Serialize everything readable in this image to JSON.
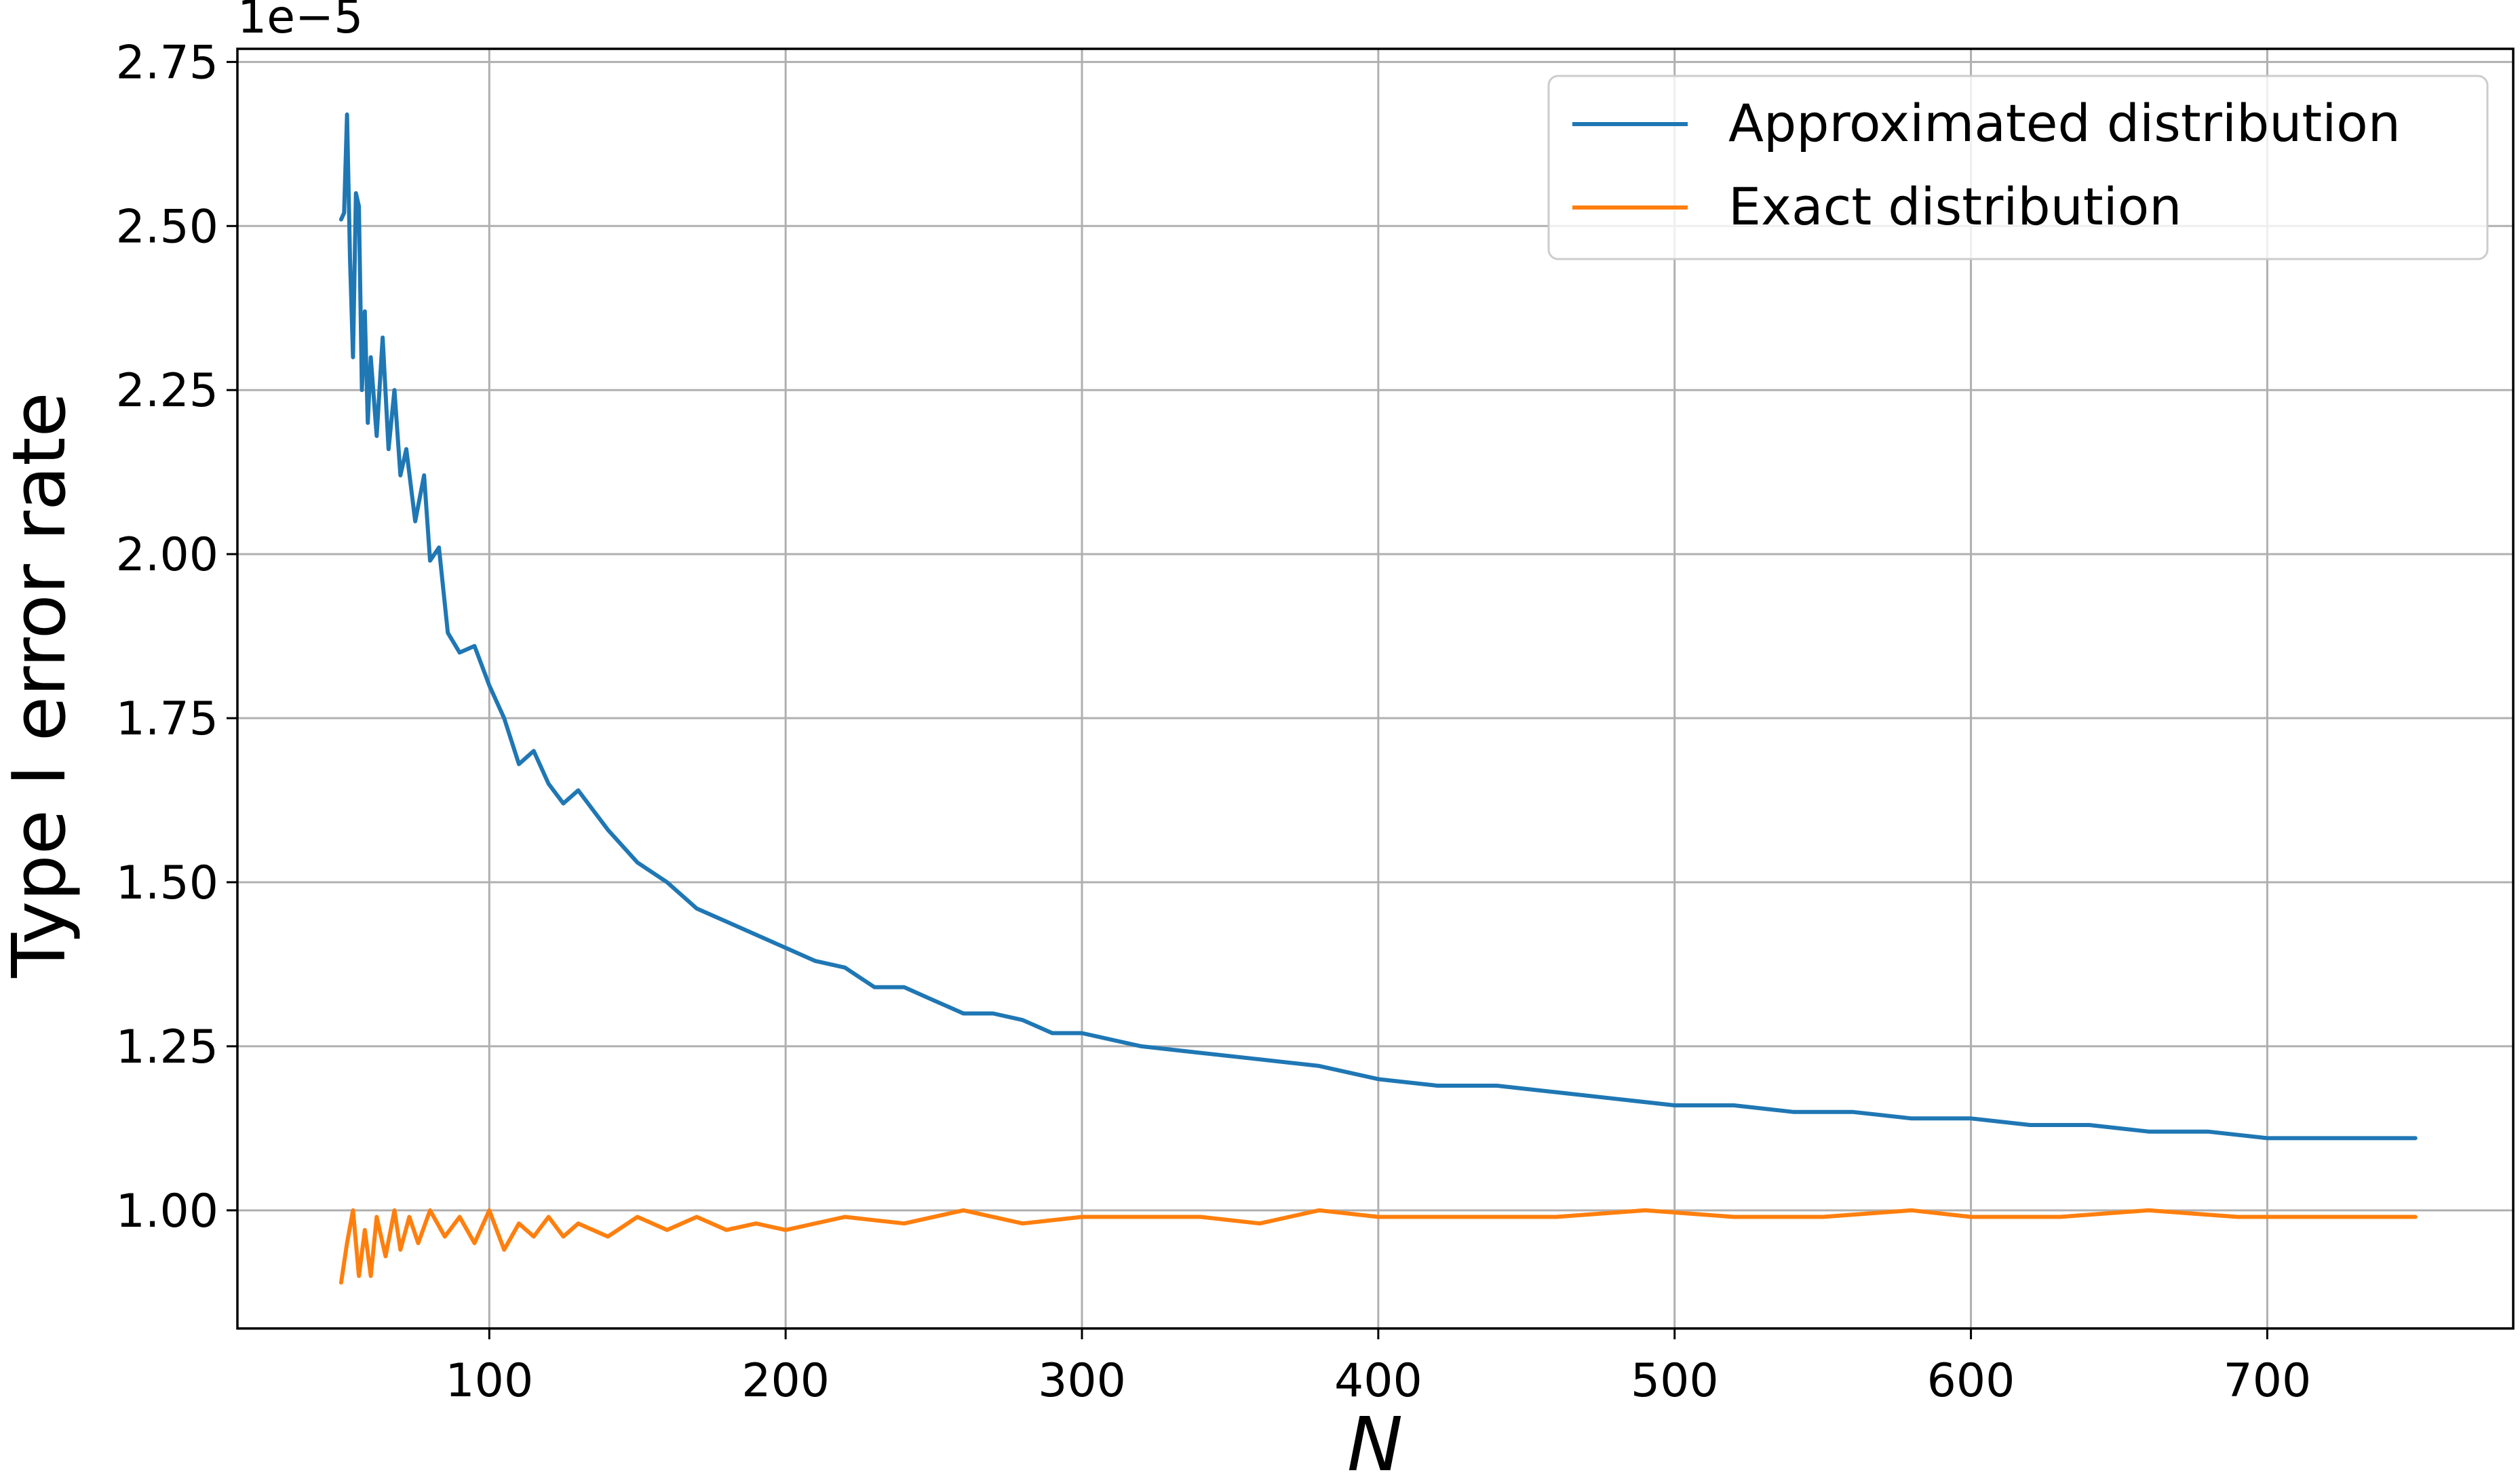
{
  "chart_data": {
    "type": "line",
    "xlabel": "N",
    "ylabel": "Type I error rate",
    "y_offset_label": "1e−5",
    "xlim": [
      15,
      783
    ],
    "ylim": [
      0.82,
      2.77
    ],
    "y_scale_note": "values shown in units of 1e-5",
    "x_ticks": [
      100,
      200,
      300,
      400,
      500,
      600,
      700
    ],
    "x_tick_labels": [
      "100",
      "200",
      "300",
      "400",
      "500",
      "600",
      "700"
    ],
    "y_ticks": [
      1.0,
      1.25,
      1.5,
      1.75,
      2.0,
      2.25,
      2.5,
      2.75
    ],
    "y_tick_labels": [
      "1.00",
      "1.25",
      "1.50",
      "1.75",
      "2.00",
      "2.25",
      "2.50",
      "2.75"
    ],
    "grid": true,
    "legend_position": "top-right",
    "series": [
      {
        "name": "Approximated distribution",
        "color": "#1f77b4",
        "x": [
          50,
          51,
          52,
          53,
          54,
          55,
          56,
          57,
          58,
          59,
          60,
          62,
          64,
          66,
          68,
          70,
          72,
          75,
          78,
          80,
          83,
          86,
          90,
          95,
          100,
          105,
          110,
          115,
          120,
          125,
          130,
          140,
          150,
          160,
          170,
          180,
          190,
          200,
          210,
          220,
          230,
          240,
          250,
          260,
          270,
          280,
          290,
          300,
          320,
          340,
          360,
          380,
          400,
          420,
          440,
          460,
          480,
          500,
          520,
          540,
          560,
          580,
          600,
          620,
          640,
          660,
          680,
          700,
          720,
          740,
          750
        ],
        "y": [
          2.51,
          2.52,
          2.67,
          2.45,
          2.3,
          2.55,
          2.53,
          2.25,
          2.37,
          2.2,
          2.3,
          2.18,
          2.33,
          2.16,
          2.25,
          2.12,
          2.16,
          2.05,
          2.12,
          1.99,
          2.01,
          1.88,
          1.85,
          1.86,
          1.8,
          1.75,
          1.68,
          1.7,
          1.65,
          1.62,
          1.64,
          1.58,
          1.53,
          1.5,
          1.46,
          1.44,
          1.42,
          1.4,
          1.38,
          1.37,
          1.34,
          1.34,
          1.32,
          1.3,
          1.3,
          1.29,
          1.27,
          1.27,
          1.25,
          1.24,
          1.23,
          1.22,
          1.2,
          1.19,
          1.19,
          1.18,
          1.17,
          1.16,
          1.16,
          1.15,
          1.15,
          1.14,
          1.14,
          1.13,
          1.13,
          1.12,
          1.12,
          1.11,
          1.11,
          1.11,
          1.11
        ]
      },
      {
        "name": "Exact distribution",
        "color": "#ff7f0e",
        "x": [
          50,
          52,
          54,
          56,
          58,
          60,
          62,
          65,
          68,
          70,
          73,
          76,
          80,
          85,
          90,
          95,
          100,
          105,
          110,
          115,
          120,
          125,
          130,
          140,
          150,
          160,
          170,
          180,
          190,
          200,
          220,
          240,
          260,
          280,
          300,
          320,
          340,
          360,
          380,
          400,
          430,
          460,
          490,
          520,
          550,
          580,
          600,
          630,
          660,
          690,
          720,
          750
        ],
        "y": [
          0.89,
          0.95,
          1.0,
          0.9,
          0.97,
          0.9,
          0.99,
          0.93,
          1.0,
          0.94,
          0.99,
          0.95,
          1.0,
          0.96,
          0.99,
          0.95,
          1.0,
          0.94,
          0.98,
          0.96,
          0.99,
          0.96,
          0.98,
          0.96,
          0.99,
          0.97,
          0.99,
          0.97,
          0.98,
          0.97,
          0.99,
          0.98,
          1.0,
          0.98,
          0.99,
          0.99,
          0.99,
          0.98,
          1.0,
          0.99,
          0.99,
          0.99,
          1.0,
          0.99,
          0.99,
          1.0,
          0.99,
          0.99,
          1.0,
          0.99,
          0.99,
          0.99
        ]
      }
    ]
  }
}
